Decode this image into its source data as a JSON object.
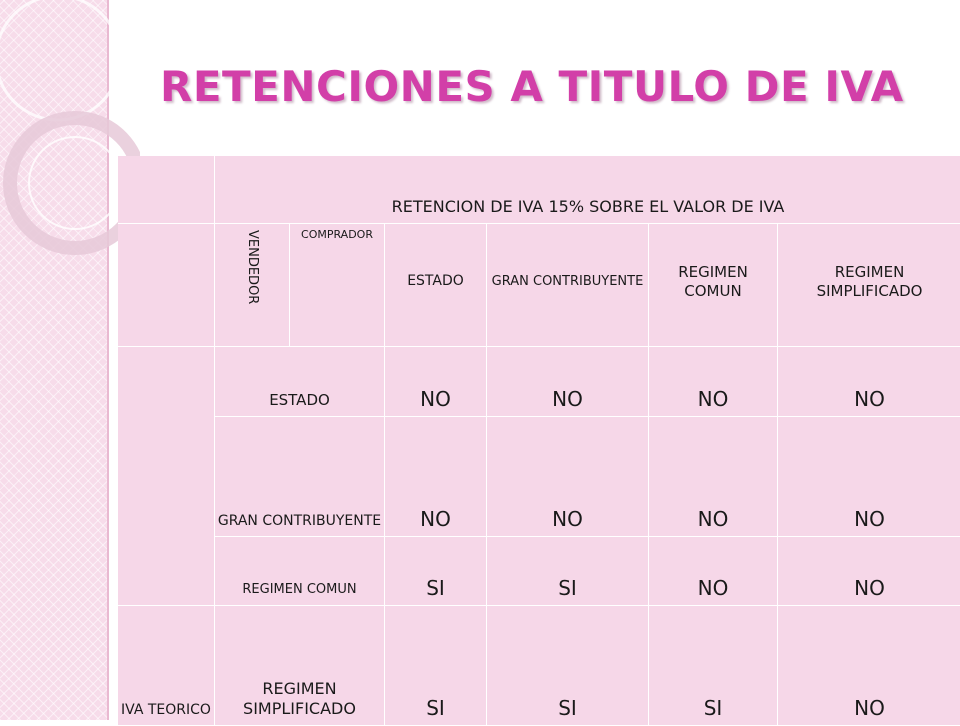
{
  "slide": {
    "title": "RETENCIONES A TITULO DE IVA"
  },
  "table": {
    "header_main": "RETENCION DE IVA 15% SOBRE EL VALOR DE IVA",
    "vendedor_label": "VENDEDOR",
    "comprador_label": "COMPRADOR",
    "column_headers": [
      "ESTADO",
      "GRAN CONTRIBUYENTE",
      "REGIMEN COMUN",
      "REGIMEN SIMPLIFICADO"
    ],
    "left_group_label": "IVA TEORICO",
    "rows": [
      {
        "label": "ESTADO",
        "values": [
          "NO",
          "NO",
          "NO",
          "NO"
        ]
      },
      {
        "label": "GRAN CONTRIBUYENTE",
        "values": [
          "NO",
          "NO",
          "NO",
          "NO"
        ]
      },
      {
        "label": "REGIMEN COMUN",
        "values": [
          "SI",
          "SI",
          "NO",
          "NO"
        ]
      },
      {
        "label": "REGIMEN SIMPLIFICADO",
        "values": [
          "SI",
          "SI",
          "SI",
          "NO"
        ]
      }
    ]
  },
  "colors": {
    "title": "#d23fa8",
    "cell_background": "#f6d7e8",
    "side_band": "#f7dcea"
  }
}
